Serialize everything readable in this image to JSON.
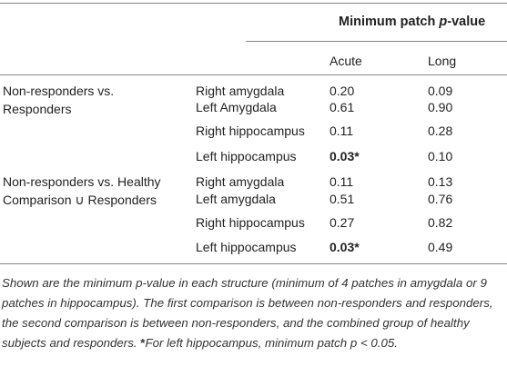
{
  "header": {
    "title": [
      "Minimum patch ",
      "p",
      "-value"
    ],
    "columns": [
      "Acute",
      "Long"
    ]
  },
  "groups": [
    {
      "label": [
        "Non-responders vs.",
        "Responders"
      ],
      "rows": [
        {
          "structure": "Right amygdala",
          "acute": "0.20",
          "long": "0.09"
        },
        {
          "structure": "Left Amygdala",
          "acute": "0.61",
          "long": "0.90"
        },
        {
          "structure": "Right hippocampus",
          "acute": "0.11",
          "long": "0.28"
        },
        {
          "structure": "Left hippocampus",
          "acute": "0.03*",
          "long": "0.10",
          "bold": true
        }
      ]
    },
    {
      "label": [
        "Non-responders vs. Healthy",
        "Comparison ∪ Responders"
      ],
      "rows": [
        {
          "structure": "Right amygdala",
          "acute": "0.11",
          "long": "0.13"
        },
        {
          "structure": "Left amygdala",
          "acute": "0.51",
          "long": "0.76"
        },
        {
          "structure": "Right hippocampus",
          "acute": "0.27",
          "long": "0.82"
        },
        {
          "structure": "Left hippocampus",
          "acute": "0.03*",
          "long": "0.49",
          "bold": true
        }
      ]
    }
  ],
  "footnote": [
    "Shown are the minimum p-value in each structure (minimum of 4 patches in amygdala or 9 patches in hippocampus). The first comparison is between non-responders and responders, the second comparison is between non-responders, and the combined group of healthy subjects and responders. ",
    "*",
    "For left hippocampus, minimum patch p < 0.05."
  ]
}
